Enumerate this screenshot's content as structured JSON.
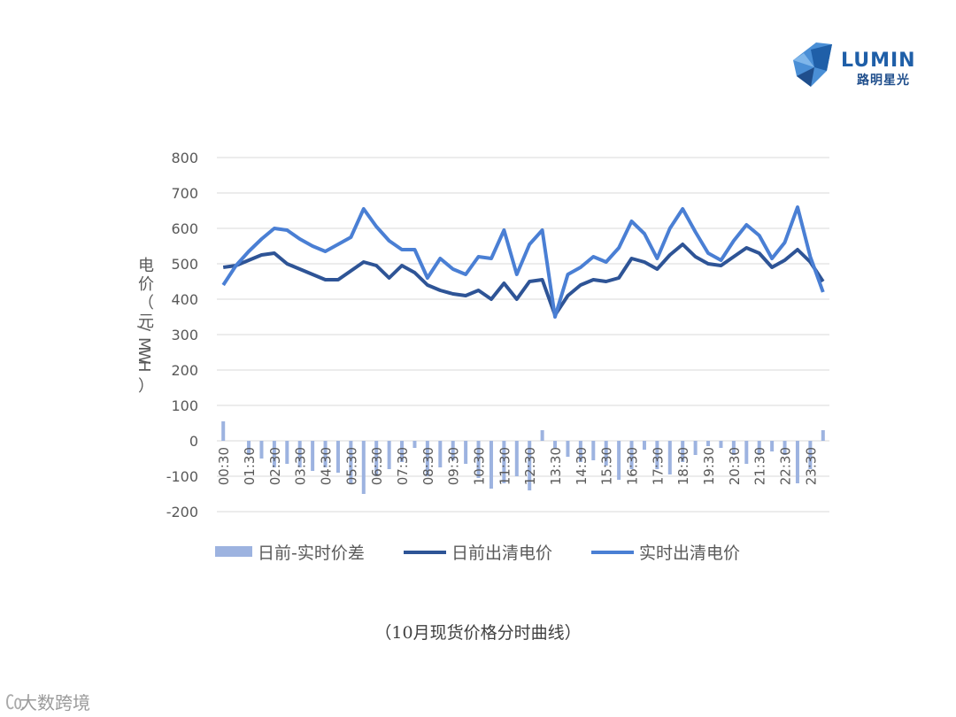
{
  "brand": {
    "name": "LUMIN",
    "sub_name": "路明星光",
    "colors": {
      "dark": "#1f4e8c",
      "light": "#4a8fd6"
    }
  },
  "caption": "（10月现货价格分时曲线）",
  "watermark": {
    "text": "大数跨境"
  },
  "chart_data": {
    "type": "line",
    "title": "",
    "ylabel": "电价（元/MWH）",
    "ylim": [
      -200,
      800
    ],
    "yticks": [
      -200,
      -100,
      0,
      100,
      200,
      300,
      400,
      500,
      600,
      700,
      800
    ],
    "grid": true,
    "legend_position": "bottom",
    "xtick_labels": [
      "00:30",
      "01:30",
      "02:30",
      "03:30",
      "04:30",
      "05:30",
      "06:30",
      "07:30",
      "08:30",
      "09:30",
      "10:30",
      "11:30",
      "12:30",
      "13:30",
      "14:30",
      "15:30",
      "16:30",
      "17:30",
      "18:30",
      "19:30",
      "20:30",
      "21:30",
      "22:30",
      "23:30"
    ],
    "x": [
      "00:30",
      "01:00",
      "01:30",
      "02:00",
      "02:30",
      "03:00",
      "03:30",
      "04:00",
      "04:30",
      "05:00",
      "05:30",
      "06:00",
      "06:30",
      "07:00",
      "07:30",
      "08:00",
      "08:30",
      "09:00",
      "09:30",
      "10:00",
      "10:30",
      "11:00",
      "11:30",
      "12:00",
      "12:30",
      "13:00",
      "13:30",
      "14:00",
      "14:30",
      "15:00",
      "15:30",
      "16:00",
      "16:30",
      "17:00",
      "17:30",
      "18:00",
      "18:30",
      "19:00",
      "19:30",
      "20:00",
      "20:30",
      "21:00",
      "21:30",
      "22:00",
      "22:30",
      "23:00",
      "23:30",
      "24:00"
    ],
    "series": [
      {
        "name": "日前-实时价差",
        "type": "bar",
        "color": "#9db3e0",
        "values": [
          55,
          0,
          -40,
          -50,
          -75,
          -65,
          -75,
          -85,
          -75,
          -90,
          -120,
          -150,
          -100,
          -80,
          -60,
          -20,
          -100,
          -75,
          -55,
          -65,
          -105,
          -135,
          -120,
          -100,
          -140,
          30,
          -20,
          -45,
          -60,
          -55,
          -70,
          -110,
          -80,
          -25,
          -80,
          -95,
          -60,
          -40,
          -15,
          -20,
          -40,
          -65,
          -40,
          -30,
          -40,
          -120,
          -80,
          30
        ]
      },
      {
        "name": "日前出清电价",
        "type": "line",
        "color": "#2e5496",
        "values": [
          490,
          495,
          510,
          525,
          530,
          500,
          485,
          470,
          455,
          455,
          480,
          505,
          495,
          460,
          495,
          475,
          440,
          425,
          415,
          410,
          425,
          400,
          445,
          400,
          450,
          455,
          355,
          410,
          440,
          455,
          450,
          460,
          515,
          505,
          485,
          525,
          555,
          520,
          500,
          495,
          520,
          545,
          530,
          490,
          510,
          540,
          505,
          450
        ]
      },
      {
        "name": "实时出清电价",
        "type": "line",
        "color": "#4a7fd4",
        "values": [
          440,
          495,
          535,
          570,
          600,
          595,
          570,
          550,
          535,
          555,
          575,
          655,
          605,
          565,
          540,
          540,
          460,
          515,
          485,
          470,
          520,
          515,
          595,
          470,
          555,
          595,
          350,
          470,
          490,
          520,
          505,
          545,
          620,
          585,
          515,
          600,
          655,
          590,
          530,
          510,
          565,
          610,
          580,
          515,
          560,
          660,
          520,
          420
        ]
      }
    ]
  }
}
